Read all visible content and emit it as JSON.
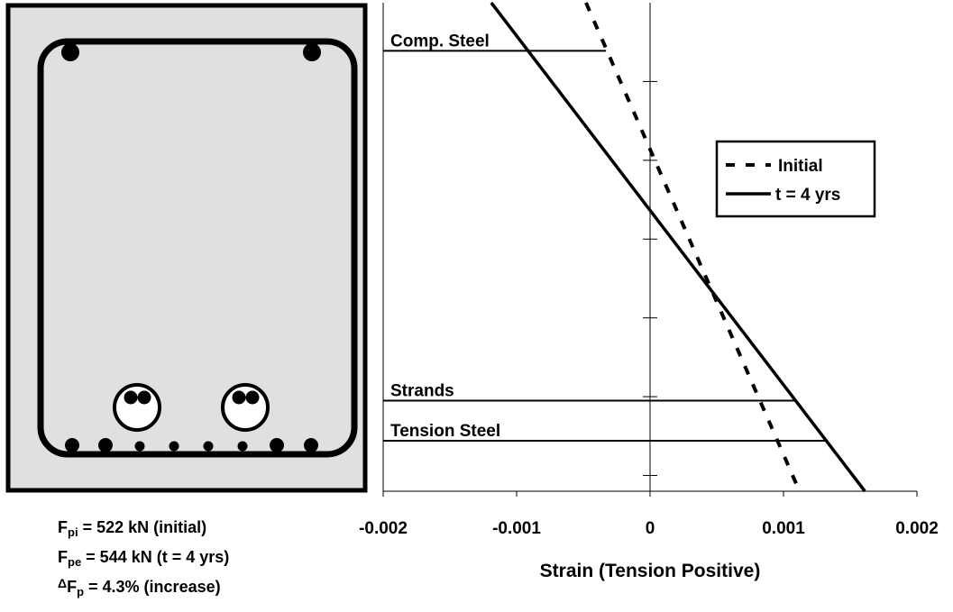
{
  "chart_data": {
    "type": "line",
    "xlabel": "Strain  (Tension Positive)",
    "xlim": [
      -0.002,
      0.002
    ],
    "xticks": [
      -0.002,
      -0.001,
      0,
      0.001,
      0.002
    ],
    "ylim": [
      0,
      620
    ],
    "yticks": [
      100,
      200,
      300,
      400,
      500,
      600
    ],
    "show_ytick_labels": false,
    "legend": "upper right",
    "series": [
      {
        "name": "Initial",
        "color": "#000000",
        "dash": true,
        "x": [
          -0.00048,
          0.00112
        ],
        "y": [
          0,
          620
        ]
      },
      {
        "name": "t = 4 yrs",
        "color": "#000000",
        "dash": false,
        "x": [
          -0.00119,
          0.00161
        ],
        "y": [
          0,
          620
        ]
      }
    ],
    "levels": [
      {
        "label": "Comp. Steel",
        "depth": 61,
        "strain": -0.00033
      },
      {
        "label": "Strands",
        "depth": 505,
        "strain": 0.0011
      },
      {
        "label": "Tension Steel",
        "depth": 556,
        "strain": 0.00133
      }
    ],
    "annotations": [
      {
        "symbol": "F",
        "sub": "pi",
        "text": " = 522 kN (initial)"
      },
      {
        "symbol": "F",
        "sub": "pe",
        "text": " = 544 kN (t = 4 yrs)"
      },
      {
        "prefix": "Δ",
        "symbol": "F",
        "sub": "p",
        "text": " = 4.3% (increase)"
      }
    ]
  }
}
